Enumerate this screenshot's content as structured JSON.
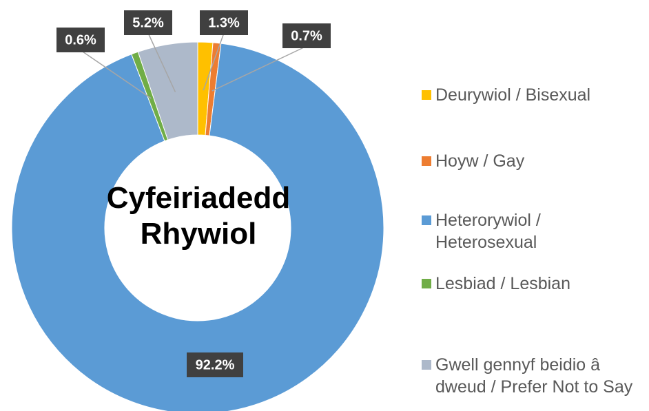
{
  "chart_data": {
    "type": "donut",
    "title": "Cyfeiriadedd Rhywiol",
    "categories": [
      "Deurywiol / Bisexual",
      "Hoyw / Gay",
      "Heterorywiol / Heterosexual",
      "Lesbiad / Lesbian",
      "Gwell gennyf beidio â dweud / Prefer Not to Say"
    ],
    "values": [
      1.3,
      0.7,
      92.2,
      0.6,
      5.2
    ],
    "value_labels": [
      "1.3%",
      "0.7%",
      "92.2%",
      "0.6%",
      "5.2%"
    ],
    "colors": [
      "#ffc000",
      "#ed7d31",
      "#5b9bd5",
      "#70ad47",
      "#adb9ca"
    ],
    "legend": "right"
  }
}
